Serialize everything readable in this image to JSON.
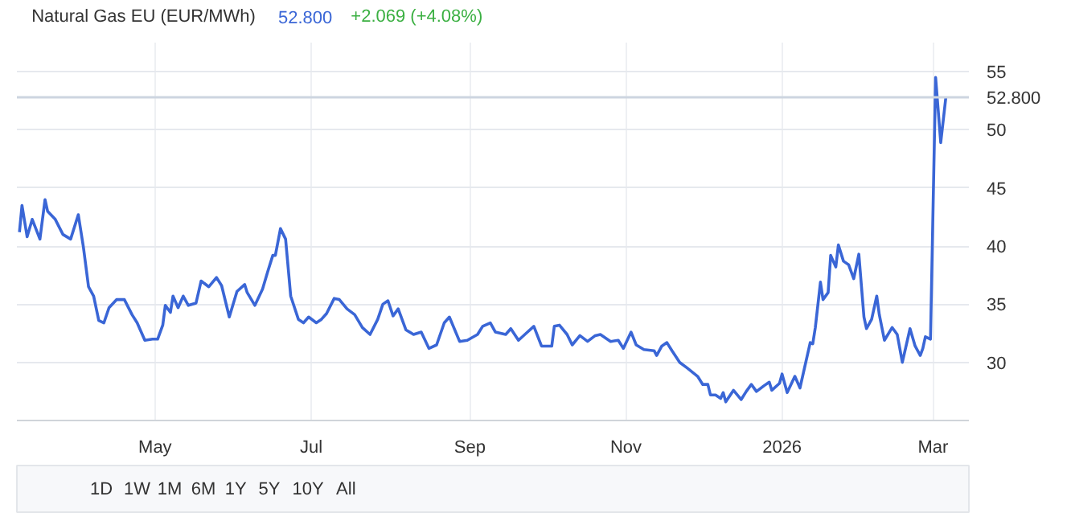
{
  "chart_data": {
    "type": "line",
    "title": "Natural Gas EU (EUR/MWh)",
    "subtitle": "+2.069 (+4.08%)",
    "x": [
      "2025-03-09",
      "2025-03-10",
      "2025-03-12",
      "2025-03-14",
      "2025-03-17",
      "2025-03-19",
      "2025-03-20",
      "2025-03-23",
      "2025-03-26",
      "2025-03-29",
      "2025-04-01",
      "2025-04-03",
      "2025-04-05",
      "2025-04-07",
      "2025-04-09",
      "2025-04-11",
      "2025-04-13",
      "2025-04-16",
      "2025-04-19",
      "2025-04-22",
      "2025-04-24",
      "2025-04-27",
      "2025-04-30",
      "2025-05-02",
      "2025-05-04",
      "2025-05-05",
      "2025-05-07",
      "2025-05-08",
      "2025-05-10",
      "2025-05-12",
      "2025-05-14",
      "2025-05-17",
      "2025-05-19",
      "2025-05-22",
      "2025-05-25",
      "2025-05-27",
      "2025-05-30",
      "2025-06-02",
      "2025-06-05",
      "2025-06-06",
      "2025-06-09",
      "2025-06-12",
      "2025-06-14",
      "2025-06-16",
      "2025-06-17",
      "2025-06-19",
      "2025-06-21",
      "2025-06-23",
      "2025-06-26",
      "2025-06-28",
      "2025-06-30",
      "2025-07-03",
      "2025-07-05",
      "2025-07-07",
      "2025-07-10",
      "2025-07-12",
      "2025-07-15",
      "2025-07-18",
      "2025-07-21",
      "2025-07-24",
      "2025-07-27",
      "2025-07-29",
      "2025-07-31",
      "2025-08-02",
      "2025-08-04",
      "2025-08-07",
      "2025-08-10",
      "2025-08-13",
      "2025-08-16",
      "2025-08-19",
      "2025-08-22",
      "2025-08-24",
      "2025-08-28",
      "2025-08-31",
      "2025-09-04",
      "2025-09-06",
      "2025-09-09",
      "2025-09-11",
      "2025-09-15",
      "2025-09-17",
      "2025-09-20",
      "2025-09-23",
      "2025-09-26",
      "2025-09-29",
      "2025-10-03",
      "2025-10-04",
      "2025-10-06",
      "2025-10-09",
      "2025-10-11",
      "2025-10-14",
      "2025-10-17",
      "2025-10-20",
      "2025-10-22",
      "2025-10-26",
      "2025-10-29",
      "2025-10-31",
      "2025-11-03",
      "2025-11-05",
      "2025-11-08",
      "2025-11-12",
      "2025-11-13",
      "2025-11-15",
      "2025-11-17",
      "2025-11-19",
      "2025-11-22",
      "2025-11-25",
      "2025-11-29",
      "2025-12-01",
      "2025-12-03",
      "2025-12-04",
      "2025-12-06",
      "2025-12-08",
      "2025-12-09",
      "2025-12-10",
      "2025-12-13",
      "2025-12-16",
      "2025-12-18",
      "2025-12-20",
      "2025-12-22",
      "2025-12-25",
      "2025-12-27",
      "2025-12-28",
      "2025-12-31",
      "2026-01-01",
      "2026-01-03",
      "2026-01-06",
      "2026-01-08",
      "2026-01-12",
      "2026-01-13",
      "2026-01-14",
      "2026-01-16",
      "2026-01-17",
      "2026-01-19",
      "2026-01-20",
      "2026-01-22",
      "2026-01-23",
      "2026-01-25",
      "2026-01-27",
      "2026-01-29",
      "2026-01-31",
      "2026-02-02",
      "2026-02-03",
      "2026-02-05",
      "2026-02-07",
      "2026-02-08",
      "2026-02-10",
      "2026-02-13",
      "2026-02-15",
      "2026-02-17",
      "2026-02-20",
      "2026-02-22",
      "2026-02-24",
      "2026-02-25",
      "2026-02-26",
      "2026-02-28",
      "2026-03-02",
      "2026-03-04",
      "2026-03-06"
    ],
    "series": [
      {
        "color": "#3a66d6",
        "values": [
          41.2,
          43.5,
          40.8,
          42.3,
          40.6,
          44.0,
          43.0,
          42.3,
          41.0,
          40.6,
          42.7,
          39.9,
          36.5,
          35.7,
          33.6,
          33.4,
          34.7,
          35.4,
          35.4,
          34.1,
          33.4,
          31.9,
          32.0,
          32.0,
          33.2,
          34.9,
          34.3,
          35.7,
          34.7,
          35.7,
          34.9,
          35.1,
          37.0,
          36.5,
          37.3,
          36.6,
          33.9,
          36.1,
          36.7,
          36.0,
          34.9,
          36.3,
          37.8,
          39.2,
          39.2,
          41.5,
          40.6,
          35.7,
          33.7,
          33.4,
          33.9,
          33.4,
          33.7,
          34.2,
          35.5,
          35.4,
          34.6,
          34.1,
          33.0,
          32.4,
          33.7,
          35.0,
          35.3,
          34.0,
          34.6,
          32.8,
          32.4,
          32.6,
          31.2,
          31.5,
          33.4,
          33.9,
          31.8,
          31.9,
          32.4,
          33.1,
          33.4,
          32.6,
          32.4,
          32.9,
          31.9,
          32.5,
          33.1,
          31.4,
          31.4,
          33.1,
          33.2,
          32.4,
          31.5,
          32.3,
          31.8,
          32.3,
          32.4,
          31.8,
          31.9,
          31.2,
          32.6,
          31.5,
          31.1,
          31.0,
          30.6,
          31.4,
          31.7,
          31.0,
          30.0,
          29.5,
          28.8,
          28.1,
          28.1,
          27.2,
          27.2,
          26.9,
          27.4,
          26.6,
          27.6,
          26.8,
          27.5,
          28.1,
          27.5,
          28.0,
          28.3,
          27.6,
          28.2,
          29.0,
          27.4,
          28.8,
          27.8,
          31.7,
          31.6,
          33.0,
          36.9,
          35.4,
          36.0,
          39.2,
          38.2,
          40.1,
          38.7,
          38.4,
          37.2,
          39.3,
          33.9,
          32.9,
          33.7,
          35.7,
          34.1,
          31.9,
          33.0,
          32.4,
          30.0,
          32.9,
          31.4,
          30.6,
          31.2,
          32.2,
          32.0,
          54.5,
          48.9,
          52.8
        ]
      }
    ],
    "xlim": [
      "2025-03-08",
      "2026-03-15"
    ],
    "xticks": [
      {
        "value": "2025-05-01",
        "label": "May"
      },
      {
        "value": "2025-07-01",
        "label": "Jul"
      },
      {
        "value": "2025-09-01",
        "label": "Sep"
      },
      {
        "value": "2025-11-01",
        "label": "Nov"
      },
      {
        "value": "2026-01-01",
        "label": "2026"
      },
      {
        "value": "2026-03-01",
        "label": "Mar"
      }
    ],
    "ylim": [
      25,
      57.5
    ],
    "yticks": [
      30,
      35,
      40,
      45,
      50,
      55
    ],
    "grid": true,
    "marker": "none",
    "line_style": "solid",
    "ref_lines": [
      {
        "axis": "y",
        "value": 52.8,
        "label": "52.800",
        "color": "#cdd5e0"
      }
    ],
    "annotations": [
      "1D",
      "1W",
      "1M",
      "6M",
      "1Y",
      "5Y",
      "10Y",
      "All"
    ]
  }
}
